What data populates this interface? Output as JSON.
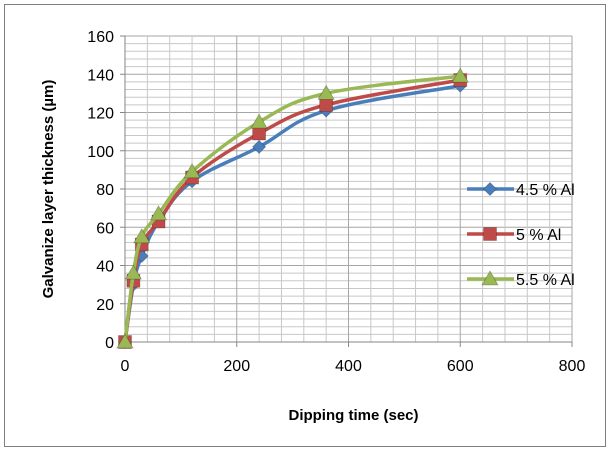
{
  "chart_data": {
    "type": "line",
    "title": "",
    "xlabel": "Dipping time (sec)",
    "ylabel": "Galvanize layer thickness (µm)",
    "xlim": [
      0,
      800
    ],
    "ylim": [
      0,
      160
    ],
    "x_ticks": [
      "0",
      "200",
      "400",
      "600",
      "800"
    ],
    "y_ticks": [
      "0",
      "20",
      "40",
      "60",
      "80",
      "100",
      "120",
      "140",
      "160"
    ],
    "grid": true,
    "legend_position": "right",
    "series": [
      {
        "name": "4.5 % Al",
        "color": "#4a7ebb",
        "marker": "diamond",
        "x": [
          0,
          15,
          30,
          60,
          120,
          240,
          360,
          600
        ],
        "y": [
          0,
          30,
          45,
          63,
          84,
          102,
          121,
          134
        ]
      },
      {
        "name": "5 % Al",
        "color": "#be4b48",
        "marker": "square",
        "x": [
          0,
          15,
          30,
          60,
          120,
          240,
          360,
          600
        ],
        "y": [
          0,
          32,
          51,
          63,
          86,
          109,
          124,
          137
        ]
      },
      {
        "name": "5.5 % Al",
        "color": "#98b954",
        "marker": "triangle",
        "x": [
          0,
          15,
          30,
          60,
          120,
          240,
          360,
          600
        ],
        "y": [
          0,
          36,
          55,
          67,
          89,
          115,
          130,
          139
        ]
      }
    ]
  }
}
